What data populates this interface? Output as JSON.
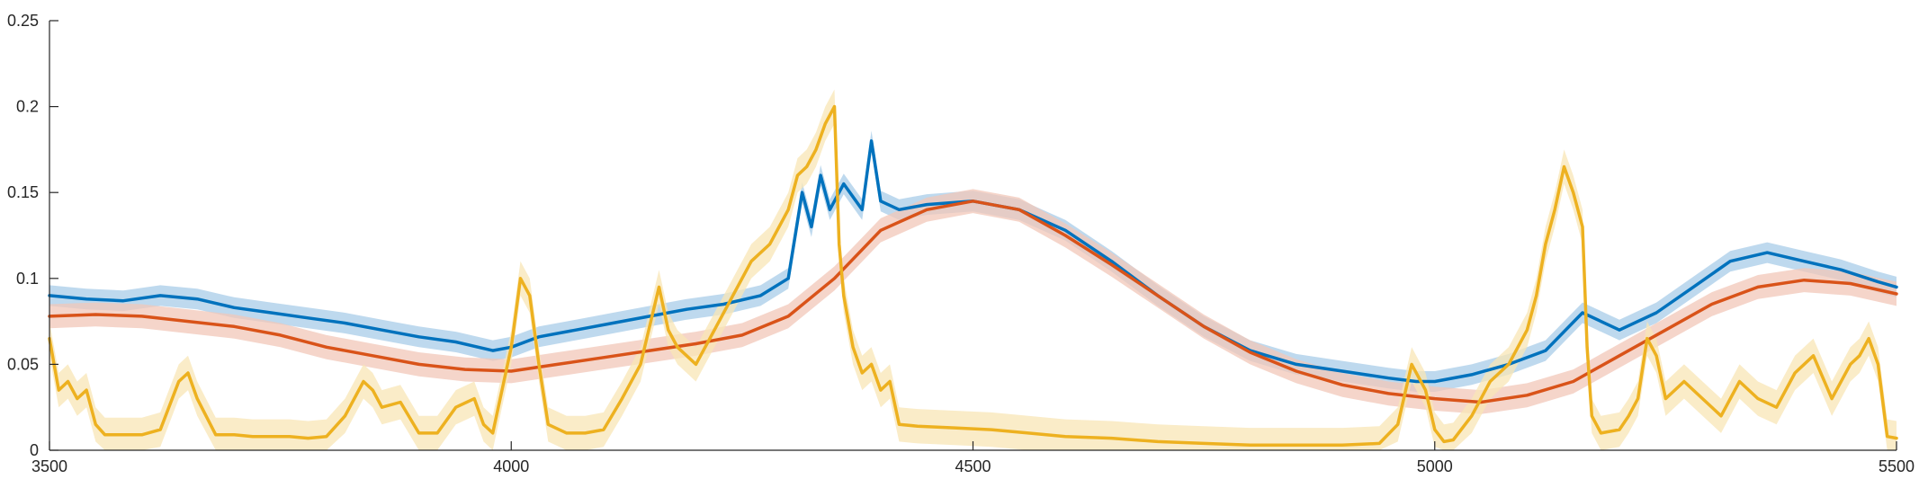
{
  "chart_data": {
    "type": "line",
    "title": "",
    "xlabel": "",
    "ylabel": "",
    "xlim": [
      3500,
      5500
    ],
    "ylim": [
      0,
      0.25
    ],
    "xticks": [
      3500,
      4000,
      4500,
      5000,
      5500
    ],
    "xtick_labels": [
      "3500",
      "4000",
      "4500",
      "5000",
      "5500"
    ],
    "yticks": [
      0,
      0.05,
      0.1,
      0.15,
      0.2,
      0.25
    ],
    "ytick_labels": [
      "0",
      "0.05",
      "0.1",
      "0.15",
      "0.2",
      "0.25"
    ],
    "grid": false,
    "legend": "none",
    "series": [
      {
        "color": "#0072BD",
        "band_color": "#a8cce8",
        "band_halfwidth": 0.006,
        "x": [
          3500,
          3540,
          3580,
          3620,
          3660,
          3700,
          3740,
          3780,
          3820,
          3860,
          3900,
          3940,
          3980,
          4000,
          4030,
          4070,
          4110,
          4150,
          4190,
          4230,
          4270,
          4300,
          4315,
          4325,
          4335,
          4345,
          4360,
          4380,
          4390,
          4400,
          4420,
          4450,
          4500,
          4550,
          4600,
          4650,
          4700,
          4750,
          4800,
          4850,
          4900,
          4950,
          4980,
          5000,
          5040,
          5080,
          5120,
          5160,
          5200,
          5240,
          5280,
          5320,
          5360,
          5400,
          5440,
          5480,
          5500
        ],
        "y": [
          0.09,
          0.088,
          0.087,
          0.09,
          0.088,
          0.083,
          0.08,
          0.077,
          0.074,
          0.07,
          0.066,
          0.063,
          0.058,
          0.06,
          0.066,
          0.07,
          0.074,
          0.078,
          0.082,
          0.085,
          0.09,
          0.1,
          0.15,
          0.13,
          0.16,
          0.14,
          0.155,
          0.14,
          0.18,
          0.145,
          0.14,
          0.143,
          0.145,
          0.14,
          0.128,
          0.11,
          0.09,
          0.072,
          0.058,
          0.05,
          0.046,
          0.042,
          0.04,
          0.04,
          0.044,
          0.05,
          0.058,
          0.08,
          0.07,
          0.08,
          0.095,
          0.11,
          0.115,
          0.11,
          0.105,
          0.098,
          0.095
        ]
      },
      {
        "color": "#D95319",
        "band_color": "#f2c7b8",
        "band_halfwidth": 0.007,
        "x": [
          3500,
          3550,
          3600,
          3650,
          3700,
          3750,
          3800,
          3850,
          3900,
          3950,
          4000,
          4050,
          4100,
          4150,
          4200,
          4250,
          4300,
          4350,
          4400,
          4450,
          4500,
          4550,
          4600,
          4650,
          4700,
          4750,
          4800,
          4850,
          4900,
          4950,
          5000,
          5050,
          5100,
          5150,
          5200,
          5250,
          5300,
          5350,
          5400,
          5450,
          5500
        ],
        "y": [
          0.078,
          0.079,
          0.078,
          0.075,
          0.072,
          0.067,
          0.06,
          0.055,
          0.05,
          0.047,
          0.046,
          0.05,
          0.054,
          0.058,
          0.062,
          0.067,
          0.078,
          0.1,
          0.128,
          0.14,
          0.145,
          0.14,
          0.125,
          0.108,
          0.09,
          0.072,
          0.057,
          0.046,
          0.038,
          0.033,
          0.03,
          0.028,
          0.032,
          0.04,
          0.055,
          0.07,
          0.085,
          0.095,
          0.099,
          0.097,
          0.091
        ]
      },
      {
        "color": "#EDB120",
        "band_color": "#f8e5b6",
        "band_halfwidth": 0.01,
        "x": [
          3500,
          3505,
          3510,
          3520,
          3530,
          3540,
          3550,
          3560,
          3580,
          3600,
          3620,
          3640,
          3650,
          3660,
          3680,
          3700,
          3720,
          3740,
          3760,
          3780,
          3800,
          3820,
          3840,
          3850,
          3860,
          3880,
          3900,
          3920,
          3940,
          3960,
          3970,
          3980,
          4000,
          4010,
          4020,
          4030,
          4040,
          4060,
          4080,
          4100,
          4120,
          4140,
          4160,
          4170,
          4180,
          4200,
          4220,
          4240,
          4260,
          4280,
          4300,
          4310,
          4320,
          4330,
          4340,
          4350,
          4355,
          4360,
          4370,
          4380,
          4390,
          4400,
          4410,
          4420,
          4440,
          4480,
          4520,
          4560,
          4600,
          4650,
          4700,
          4750,
          4800,
          4850,
          4900,
          4940,
          4960,
          4975,
          4990,
          5000,
          5010,
          5020,
          5040,
          5060,
          5080,
          5100,
          5110,
          5120,
          5130,
          5140,
          5150,
          5160,
          5165,
          5170,
          5180,
          5200,
          5210,
          5220,
          5230,
          5240,
          5250,
          5270,
          5290,
          5310,
          5330,
          5350,
          5370,
          5390,
          5410,
          5430,
          5450,
          5460,
          5470,
          5480,
          5490,
          5500
        ],
        "y": [
          0.065,
          0.05,
          0.035,
          0.04,
          0.03,
          0.035,
          0.015,
          0.009,
          0.009,
          0.009,
          0.012,
          0.04,
          0.045,
          0.03,
          0.009,
          0.009,
          0.008,
          0.008,
          0.008,
          0.007,
          0.008,
          0.02,
          0.04,
          0.035,
          0.025,
          0.028,
          0.01,
          0.01,
          0.025,
          0.03,
          0.015,
          0.01,
          0.06,
          0.1,
          0.09,
          0.05,
          0.015,
          0.01,
          0.01,
          0.012,
          0.03,
          0.05,
          0.095,
          0.07,
          0.06,
          0.05,
          0.07,
          0.09,
          0.11,
          0.12,
          0.14,
          0.16,
          0.165,
          0.175,
          0.19,
          0.2,
          0.12,
          0.09,
          0.06,
          0.045,
          0.05,
          0.035,
          0.04,
          0.015,
          0.014,
          0.013,
          0.012,
          0.01,
          0.008,
          0.007,
          0.005,
          0.004,
          0.003,
          0.003,
          0.003,
          0.004,
          0.015,
          0.05,
          0.035,
          0.012,
          0.005,
          0.006,
          0.02,
          0.04,
          0.05,
          0.07,
          0.09,
          0.12,
          0.14,
          0.165,
          0.15,
          0.13,
          0.06,
          0.02,
          0.01,
          0.012,
          0.02,
          0.03,
          0.065,
          0.055,
          0.03,
          0.04,
          0.03,
          0.02,
          0.04,
          0.03,
          0.025,
          0.045,
          0.055,
          0.03,
          0.05,
          0.055,
          0.065,
          0.05,
          0.008,
          0.007
        ]
      }
    ]
  }
}
